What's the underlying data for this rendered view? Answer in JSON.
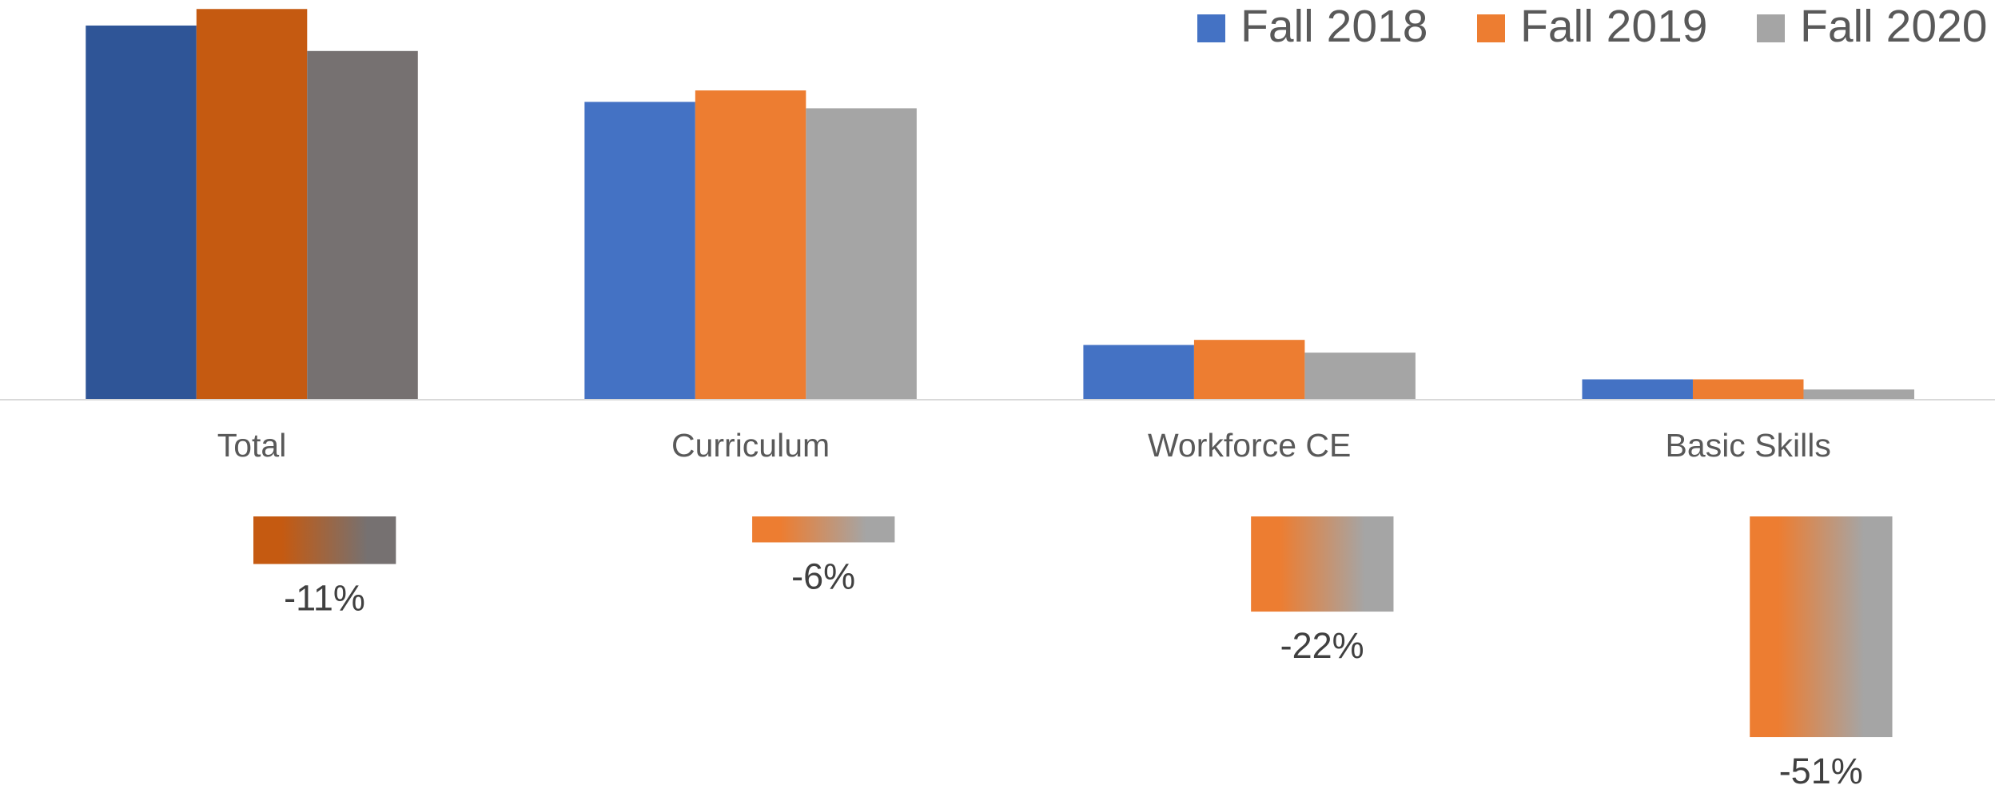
{
  "chart_data": {
    "type": "bar",
    "categories": [
      "Total",
      "Curriculum",
      "Workforce CE",
      "Basic Skills"
    ],
    "series": [
      {
        "name": "Fall 2018",
        "color": "#4472c4",
        "values": [
          294,
          234,
          43,
          16
        ]
      },
      {
        "name": "Fall 2019",
        "color": "#ed7d31",
        "values": [
          307,
          243,
          47,
          16
        ]
      },
      {
        "name": "Fall 2020",
        "color": "#a5a5a5",
        "values": [
          274,
          229,
          37,
          8
        ]
      }
    ],
    "highlight": {
      "category": 0,
      "colors": [
        "#2f5597",
        "#c55a11",
        "#767171"
      ]
    },
    "change": {
      "values": [
        -11,
        -6,
        -22,
        -51
      ],
      "value_labels": [
        "-11%",
        "-6%",
        "-22%",
        "-51%"
      ],
      "colors": [
        "#ed7d31",
        "#a5a5a5"
      ]
    },
    "legend": "top-right"
  }
}
